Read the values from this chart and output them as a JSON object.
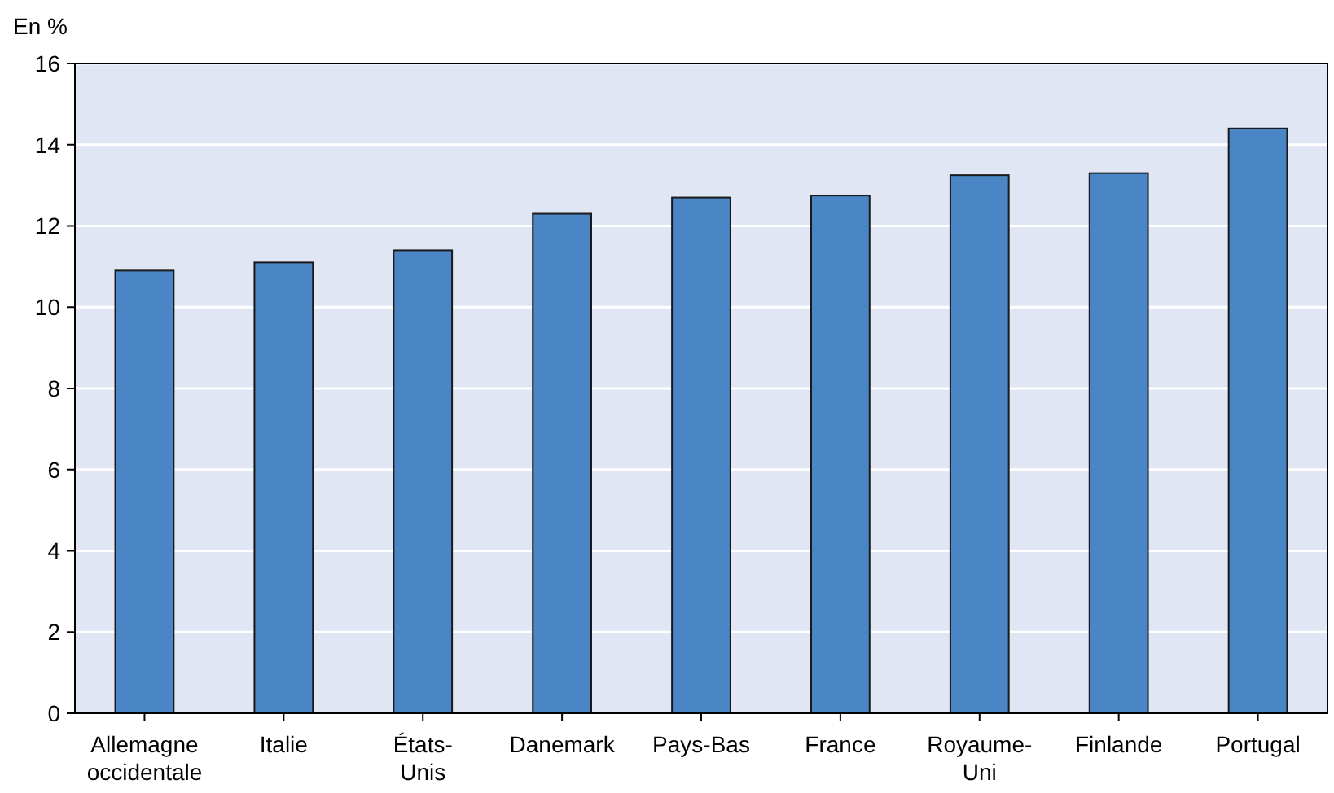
{
  "chart_data": {
    "type": "bar",
    "ylabel": "En %",
    "categories": [
      "Allemagne occidentale",
      "Italie",
      "États-Unis",
      "Danemark",
      "Pays-Bas",
      "France",
      "Royaume-Uni",
      "Finlande",
      "Portugal"
    ],
    "values": [
      10.9,
      11.1,
      11.4,
      12.3,
      12.7,
      12.75,
      13.25,
      13.3,
      14.4
    ],
    "color": "#4a86c5",
    "ylim": [
      0,
      16
    ],
    "yticks": [
      0,
      2,
      4,
      6,
      8,
      10,
      12,
      14,
      16
    ],
    "grid": "y"
  }
}
